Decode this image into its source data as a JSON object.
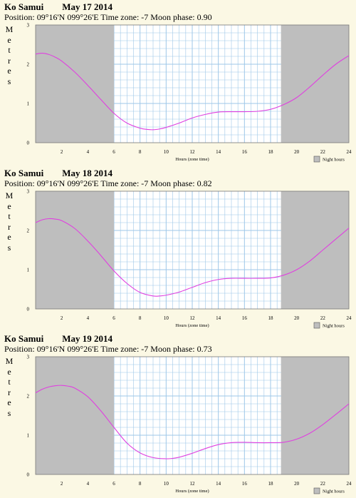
{
  "colors": {
    "page_background": "#fbf8e4",
    "night_shade": "#bebebe",
    "day_background": "#ffffff",
    "grid": "#9ec7e8",
    "tide_curve": "#e040e0"
  },
  "panels": [
    {
      "location": "Ko Samui",
      "date": "May 17 2014",
      "position_label": "Position:",
      "position": "09°16'N 099°26'E",
      "timezone_label": "Time zone:",
      "timezone": "-7",
      "moon_label": "Moon phase:",
      "moon_phase": "0.90"
    },
    {
      "location": "Ko Samui",
      "date": "May 18 2014",
      "position_label": "Position:",
      "position": "09°16'N 099°26'E",
      "timezone_label": "Time zone:",
      "timezone": "-7",
      "moon_label": "Moon phase:",
      "moon_phase": "0.82"
    },
    {
      "location": "Ko Samui",
      "date": "May 19 2014",
      "position_label": "Position:",
      "position": "09°16'N 099°26'E",
      "timezone_label": "Time zone:",
      "timezone": "-7",
      "moon_label": "Moon phase:",
      "moon_phase": "0.73"
    }
  ],
  "chart_data": [
    {
      "type": "line",
      "ylabel": "Metres",
      "xlabel": "Hours (zone time)",
      "legend": "Night hours",
      "legend_position": "bottom-right",
      "grid": true,
      "xlim": [
        0,
        24
      ],
      "ylim": [
        0,
        3
      ],
      "xticks": [
        2,
        4,
        6,
        8,
        10,
        12,
        14,
        16,
        18,
        20,
        22,
        24
      ],
      "yticks": [
        0,
        1,
        2,
        3
      ],
      "night_hours": [
        [
          0,
          6
        ],
        [
          18.8,
          24
        ]
      ],
      "series": [
        {
          "x": [
            0,
            0.5,
            1,
            1.5,
            2,
            3,
            4,
            5,
            6,
            7,
            8,
            8.5,
            9,
            9.5,
            10,
            11,
            12,
            13,
            14,
            15,
            16,
            17,
            18,
            19,
            20,
            21,
            22,
            23,
            24
          ],
          "y": [
            2.26,
            2.28,
            2.25,
            2.18,
            2.08,
            1.8,
            1.46,
            1.1,
            0.75,
            0.5,
            0.37,
            0.34,
            0.33,
            0.35,
            0.39,
            0.5,
            0.63,
            0.72,
            0.78,
            0.79,
            0.79,
            0.8,
            0.85,
            0.97,
            1.15,
            1.42,
            1.72,
            2.0,
            2.22
          ]
        }
      ]
    },
    {
      "type": "line",
      "ylabel": "Metres",
      "xlabel": "Hours (zone time)",
      "legend": "Night hours",
      "legend_position": "bottom-right",
      "grid": true,
      "xlim": [
        0,
        24
      ],
      "ylim": [
        0,
        3
      ],
      "xticks": [
        2,
        4,
        6,
        8,
        10,
        12,
        14,
        16,
        18,
        20,
        22,
        24
      ],
      "yticks": [
        0,
        1,
        2,
        3
      ],
      "night_hours": [
        [
          0,
          6
        ],
        [
          18.8,
          24
        ]
      ],
      "series": [
        {
          "x": [
            0,
            0.5,
            1,
            1.5,
            2,
            3,
            4,
            5,
            6,
            7,
            8,
            9,
            9.5,
            10,
            11,
            12,
            13,
            14,
            15,
            16,
            17,
            18,
            19,
            20,
            21,
            22,
            23,
            24
          ],
          "y": [
            2.2,
            2.27,
            2.3,
            2.29,
            2.25,
            2.05,
            1.73,
            1.36,
            0.97,
            0.65,
            0.42,
            0.33,
            0.33,
            0.35,
            0.43,
            0.55,
            0.67,
            0.75,
            0.78,
            0.78,
            0.78,
            0.79,
            0.86,
            1.0,
            1.22,
            1.5,
            1.78,
            2.06
          ]
        }
      ]
    },
    {
      "type": "line",
      "ylabel": "Metres",
      "xlabel": "Hours (zone time)",
      "legend": "Night hours",
      "legend_position": "bottom-right",
      "grid": true,
      "xlim": [
        0,
        24
      ],
      "ylim": [
        0,
        3
      ],
      "xticks": [
        2,
        4,
        6,
        8,
        10,
        12,
        14,
        16,
        18,
        20,
        22,
        24
      ],
      "yticks": [
        0,
        1,
        2,
        3
      ],
      "night_hours": [
        [
          0,
          6
        ],
        [
          18.8,
          24
        ]
      ],
      "series": [
        {
          "x": [
            0,
            0.5,
            1,
            1.5,
            2,
            2.5,
            3,
            4,
            5,
            6,
            7,
            8,
            9,
            10,
            10.5,
            11,
            12,
            13,
            14,
            15,
            16,
            17,
            18,
            19,
            20,
            21,
            22,
            23,
            24
          ],
          "y": [
            2.08,
            2.17,
            2.23,
            2.26,
            2.27,
            2.25,
            2.2,
            1.98,
            1.62,
            1.2,
            0.8,
            0.55,
            0.43,
            0.4,
            0.41,
            0.44,
            0.54,
            0.66,
            0.76,
            0.81,
            0.82,
            0.81,
            0.81,
            0.82,
            0.9,
            1.05,
            1.27,
            1.53,
            1.8
          ]
        }
      ]
    }
  ]
}
